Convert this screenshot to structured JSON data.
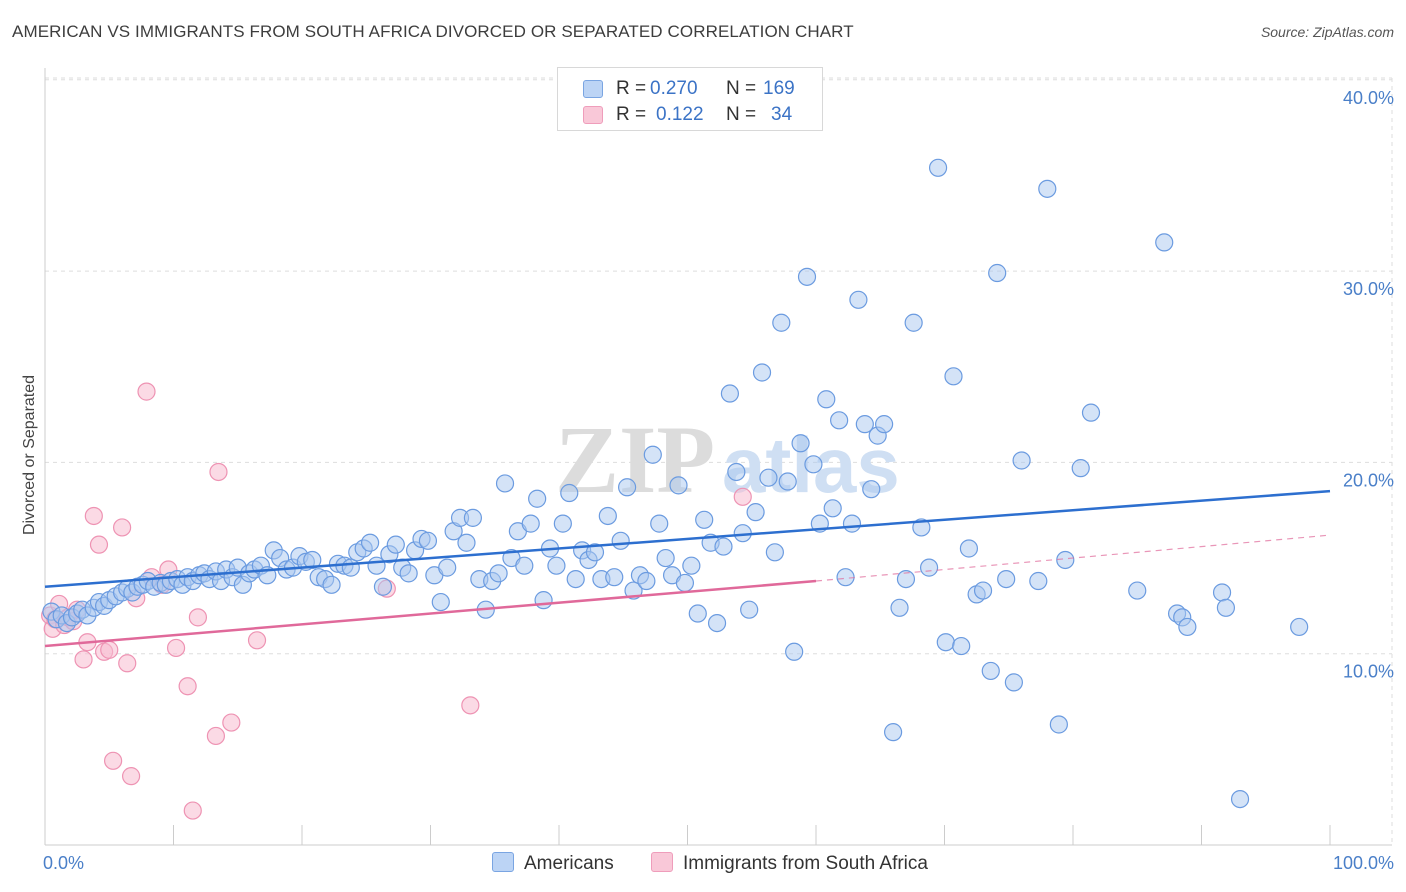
{
  "title": "AMERICAN VS IMMIGRANTS FROM SOUTH AFRICA DIVORCED OR SEPARATED CORRELATION CHART",
  "source": "Source: ZipAtlas.com",
  "watermark": {
    "zip": "ZIP",
    "atlas": "atlas"
  },
  "colors": {
    "americans_fill": "#a9c7f0",
    "americans_stroke": "#6b9be0",
    "americans_line": "#2d6fcf",
    "sa_fill": "#f7bcd0",
    "sa_stroke": "#ee93b3",
    "sa_line": "#e0699a",
    "grid": "#dddddd",
    "tick_text": "#4a7fc8"
  },
  "legend": {
    "rows": [
      {
        "r_label": "R =",
        "r_value": "0.270",
        "n_label": "N =",
        "n_value": "169"
      },
      {
        "r_label": "R =",
        "r_value": "0.122",
        "n_label": "N =",
        "n_value": "34"
      }
    ]
  },
  "chart_data": {
    "type": "scatter",
    "xlabel": "",
    "ylabel": "Divorced or Separated",
    "xlim": [
      0,
      100
    ],
    "ylim": [
      0,
      40
    ],
    "x_tick_labels": [
      "0.0%",
      "100.0%"
    ],
    "y_ticks": [
      10,
      20,
      30,
      40
    ],
    "y_tick_labels": [
      "10.0%",
      "20.0%",
      "30.0%",
      "40.0%"
    ],
    "grid": "horizontal dashed",
    "legend_position": "top-center",
    "series": [
      {
        "name": "Americans",
        "trend": {
          "x0": 0,
          "y0": 13.5,
          "x1": 100,
          "y1": 18.5
        },
        "points": [
          [
            0.5,
            12.2
          ],
          [
            0.9,
            11.8
          ],
          [
            1.3,
            12.0
          ],
          [
            1.7,
            11.6
          ],
          [
            2.1,
            11.9
          ],
          [
            2.5,
            12.1
          ],
          [
            2.9,
            12.3
          ],
          [
            3.3,
            12.0
          ],
          [
            3.8,
            12.4
          ],
          [
            4.2,
            12.7
          ],
          [
            4.6,
            12.5
          ],
          [
            5.0,
            12.8
          ],
          [
            5.5,
            13.0
          ],
          [
            6.0,
            13.2
          ],
          [
            6.4,
            13.4
          ],
          [
            6.8,
            13.2
          ],
          [
            7.2,
            13.5
          ],
          [
            7.6,
            13.6
          ],
          [
            8.0,
            13.8
          ],
          [
            8.5,
            13.5
          ],
          [
            9.0,
            13.7
          ],
          [
            9.4,
            13.6
          ],
          [
            9.8,
            13.8
          ],
          [
            10.3,
            13.9
          ],
          [
            10.7,
            13.6
          ],
          [
            11.1,
            14.0
          ],
          [
            11.5,
            13.8
          ],
          [
            12.0,
            14.1
          ],
          [
            12.4,
            14.2
          ],
          [
            12.8,
            13.9
          ],
          [
            13.3,
            14.3
          ],
          [
            13.7,
            13.8
          ],
          [
            14.1,
            14.4
          ],
          [
            14.6,
            14.0
          ],
          [
            15.0,
            14.5
          ],
          [
            15.4,
            13.6
          ],
          [
            15.9,
            14.2
          ],
          [
            16.3,
            14.4
          ],
          [
            16.8,
            14.6
          ],
          [
            17.3,
            14.1
          ],
          [
            17.8,
            15.4
          ],
          [
            18.3,
            15.0
          ],
          [
            18.8,
            14.4
          ],
          [
            19.3,
            14.5
          ],
          [
            19.8,
            15.1
          ],
          [
            20.3,
            14.8
          ],
          [
            20.8,
            14.9
          ],
          [
            21.3,
            14.0
          ],
          [
            21.8,
            13.9
          ],
          [
            22.3,
            13.6
          ],
          [
            22.8,
            14.7
          ],
          [
            23.3,
            14.6
          ],
          [
            23.8,
            14.5
          ],
          [
            24.3,
            15.3
          ],
          [
            24.8,
            15.5
          ],
          [
            25.3,
            15.8
          ],
          [
            25.8,
            14.6
          ],
          [
            26.3,
            13.5
          ],
          [
            26.8,
            15.2
          ],
          [
            27.3,
            15.7
          ],
          [
            27.8,
            14.5
          ],
          [
            28.3,
            14.2
          ],
          [
            28.8,
            15.4
          ],
          [
            29.3,
            16.0
          ],
          [
            29.8,
            15.9
          ],
          [
            30.3,
            14.1
          ],
          [
            30.8,
            12.7
          ],
          [
            31.3,
            14.5
          ],
          [
            31.8,
            16.4
          ],
          [
            32.3,
            17.1
          ],
          [
            32.8,
            15.8
          ],
          [
            33.3,
            17.1
          ],
          [
            33.8,
            13.9
          ],
          [
            34.3,
            12.3
          ],
          [
            34.8,
            13.8
          ],
          [
            35.3,
            14.2
          ],
          [
            35.8,
            18.9
          ],
          [
            36.3,
            15.0
          ],
          [
            36.8,
            16.4
          ],
          [
            37.3,
            14.6
          ],
          [
            37.8,
            16.8
          ],
          [
            38.3,
            18.1
          ],
          [
            38.8,
            12.8
          ],
          [
            39.3,
            15.5
          ],
          [
            39.8,
            14.6
          ],
          [
            40.3,
            16.8
          ],
          [
            40.8,
            18.4
          ],
          [
            41.3,
            13.9
          ],
          [
            41.8,
            15.4
          ],
          [
            42.3,
            14.9
          ],
          [
            42.8,
            15.3
          ],
          [
            43.3,
            13.9
          ],
          [
            43.8,
            17.2
          ],
          [
            44.3,
            14.0
          ],
          [
            44.8,
            15.9
          ],
          [
            45.3,
            18.7
          ],
          [
            45.8,
            13.3
          ],
          [
            46.3,
            14.1
          ],
          [
            46.8,
            13.8
          ],
          [
            47.3,
            20.4
          ],
          [
            47.8,
            16.8
          ],
          [
            48.3,
            15.0
          ],
          [
            48.8,
            14.1
          ],
          [
            49.3,
            18.8
          ],
          [
            49.8,
            13.7
          ],
          [
            50.3,
            14.6
          ],
          [
            50.8,
            12.1
          ],
          [
            51.3,
            17.0
          ],
          [
            51.8,
            15.8
          ],
          [
            52.3,
            11.6
          ],
          [
            52.8,
            15.6
          ],
          [
            53.3,
            23.6
          ],
          [
            53.8,
            19.5
          ],
          [
            54.3,
            16.3
          ],
          [
            54.8,
            12.3
          ],
          [
            55.3,
            17.4
          ],
          [
            55.8,
            24.7
          ],
          [
            56.3,
            19.2
          ],
          [
            56.8,
            15.3
          ],
          [
            57.3,
            27.3
          ],
          [
            57.8,
            19.0
          ],
          [
            58.3,
            10.1
          ],
          [
            58.8,
            21.0
          ],
          [
            59.3,
            29.7
          ],
          [
            59.8,
            19.9
          ],
          [
            60.3,
            16.8
          ],
          [
            60.8,
            23.3
          ],
          [
            61.3,
            17.6
          ],
          [
            61.8,
            22.2
          ],
          [
            62.3,
            14.0
          ],
          [
            62.8,
            16.8
          ],
          [
            63.3,
            28.5
          ],
          [
            63.8,
            22.0
          ],
          [
            64.3,
            18.6
          ],
          [
            64.8,
            21.4
          ],
          [
            65.3,
            22.0
          ],
          [
            66.0,
            5.9
          ],
          [
            66.5,
            12.4
          ],
          [
            67.0,
            13.9
          ],
          [
            67.6,
            27.3
          ],
          [
            68.2,
            16.6
          ],
          [
            68.8,
            14.5
          ],
          [
            69.5,
            35.4
          ],
          [
            70.1,
            10.6
          ],
          [
            70.7,
            24.5
          ],
          [
            71.3,
            10.4
          ],
          [
            71.9,
            15.5
          ],
          [
            72.5,
            13.1
          ],
          [
            73.0,
            13.3
          ],
          [
            73.6,
            9.1
          ],
          [
            74.1,
            29.9
          ],
          [
            74.8,
            13.9
          ],
          [
            75.4,
            8.5
          ],
          [
            76.0,
            20.1
          ],
          [
            77.3,
            13.8
          ],
          [
            78.0,
            34.3
          ],
          [
            78.9,
            6.3
          ],
          [
            79.4,
            14.9
          ],
          [
            80.6,
            19.7
          ],
          [
            81.4,
            22.6
          ],
          [
            85.0,
            13.3
          ],
          [
            87.1,
            31.5
          ],
          [
            88.1,
            12.1
          ],
          [
            88.5,
            11.9
          ],
          [
            88.9,
            11.4
          ],
          [
            91.6,
            13.2
          ],
          [
            91.9,
            12.4
          ],
          [
            93.0,
            2.4
          ],
          [
            97.6,
            11.4
          ]
        ]
      },
      {
        "name": "Immigrants from South Africa",
        "trend": {
          "x0": 0,
          "y0": 10.4,
          "x1": 60,
          "y1": 13.8,
          "dash_x1": 100,
          "dash_y1": 16.2
        },
        "points": [
          [
            0.4,
            12.0
          ],
          [
            0.6,
            11.3
          ],
          [
            0.8,
            11.8
          ],
          [
            1.1,
            12.6
          ],
          [
            1.5,
            11.5
          ],
          [
            1.8,
            11.9
          ],
          [
            2.2,
            11.7
          ],
          [
            2.5,
            12.3
          ],
          [
            3.0,
            9.7
          ],
          [
            3.3,
            10.6
          ],
          [
            3.8,
            17.2
          ],
          [
            4.2,
            15.7
          ],
          [
            4.6,
            10.1
          ],
          [
            5.0,
            10.2
          ],
          [
            5.3,
            4.4
          ],
          [
            6.0,
            16.6
          ],
          [
            6.4,
            9.5
          ],
          [
            6.7,
            3.6
          ],
          [
            7.1,
            12.9
          ],
          [
            7.9,
            23.7
          ],
          [
            8.3,
            14.0
          ],
          [
            9.1,
            13.6
          ],
          [
            9.6,
            14.4
          ],
          [
            10.2,
            10.3
          ],
          [
            11.1,
            8.3
          ],
          [
            11.5,
            1.8
          ],
          [
            11.9,
            11.9
          ],
          [
            13.3,
            5.7
          ],
          [
            13.5,
            19.5
          ],
          [
            14.5,
            6.4
          ],
          [
            16.5,
            10.7
          ],
          [
            26.6,
            13.4
          ],
          [
            33.1,
            7.3
          ],
          [
            54.3,
            18.2
          ]
        ]
      }
    ]
  },
  "bottom_legend": [
    {
      "label": "Americans"
    },
    {
      "label": "Immigrants from South Africa"
    }
  ]
}
